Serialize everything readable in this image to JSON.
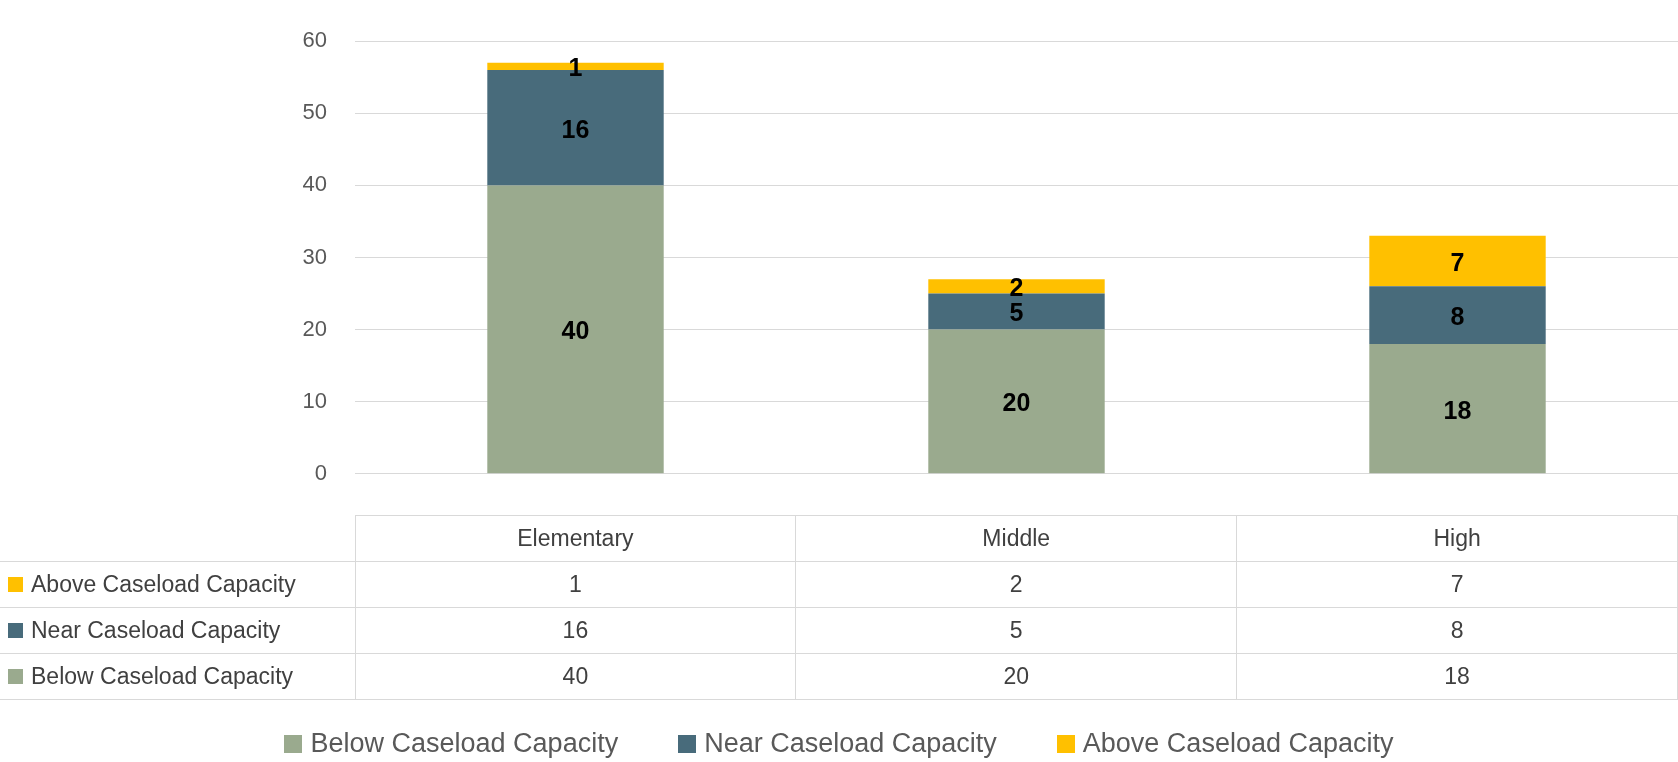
{
  "chart_data": {
    "type": "bar",
    "stacked": true,
    "categories": [
      "Elementary",
      "Middle",
      "High"
    ],
    "series": [
      {
        "name": "Below Caseload Capacity",
        "color": "#9aaa8e",
        "values": [
          40,
          20,
          18
        ],
        "value_labels": [
          "40",
          "20",
          "18"
        ]
      },
      {
        "name": "Near Caseload Capacity",
        "color": "#486b7b",
        "values": [
          16,
          5,
          8
        ],
        "value_labels": [
          "16",
          "5",
          "8"
        ]
      },
      {
        "name": "Above Caseload Capacity",
        "color": "#ffc000",
        "values": [
          1,
          2,
          7
        ],
        "value_labels": [
          "1",
          "2",
          "7"
        ]
      }
    ],
    "ylim": [
      0,
      60
    ],
    "yticks": [
      0,
      10,
      20,
      30,
      40,
      50,
      60
    ],
    "grid": "y",
    "legend": "bottom",
    "annotations": [
      "1",
      "2",
      "7",
      "16",
      "5",
      "8",
      "40",
      "20",
      "18"
    ]
  }
}
